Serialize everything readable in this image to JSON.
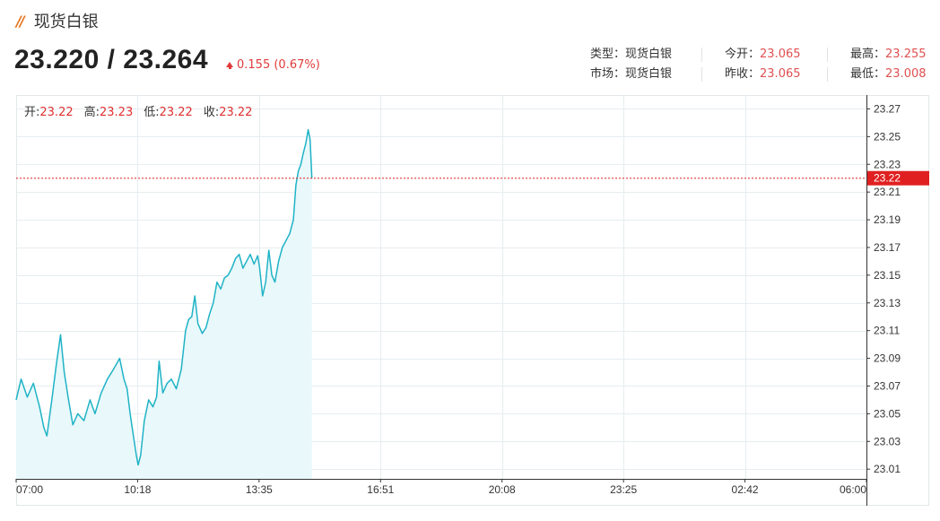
{
  "header": {
    "title": "现货白银",
    "title_mark": "//",
    "price": "23.220 / 23.264",
    "change": "0.155 (0.67%)"
  },
  "info": {
    "type_label": "类型：",
    "type_value": "现货白银",
    "market_label": "市场：",
    "market_value": "现货白银",
    "open_label": "今开：",
    "open_value": "23.065",
    "prev_close_label": "昨收：",
    "prev_close_value": "23.065",
    "high_label": "最高：",
    "high_value": "23.255",
    "low_label": "最低：",
    "low_value": "23.008"
  },
  "ohlc": {
    "open_label": "开:",
    "open_value": "23.22",
    "high_label": "高:",
    "high_value": "23.23",
    "low_label": "低:",
    "low_value": "23.22",
    "close_label": "收:",
    "close_value": "23.22"
  },
  "colors": {
    "line": "#1fb3c6",
    "area": "#e9f8fa",
    "current_price": "#e02020",
    "grid": "#e6edf0"
  },
  "chart_data": {
    "type": "area",
    "title": "",
    "xlabel": "",
    "ylabel": "",
    "x_ticks": [
      "07:00",
      "10:18",
      "13:35",
      "16:51",
      "20:08",
      "23:25",
      "02:42",
      "06:00"
    ],
    "y_ticks": [
      "23.27",
      "23.25",
      "23.23",
      "23.21",
      "23.19",
      "23.17",
      "23.15",
      "23.13",
      "23.11",
      "23.09",
      "23.07",
      "23.05",
      "23.03",
      "23.01"
    ],
    "ylim": [
      23.003,
      23.28
    ],
    "current_price": 23.22,
    "current_price_label": "23.22",
    "grid": true,
    "series": [
      {
        "values": [
          [
            "07:00",
            23.06
          ],
          [
            "07:08",
            23.075
          ],
          [
            "07:18",
            23.062
          ],
          [
            "07:28",
            23.072
          ],
          [
            "07:38",
            23.055
          ],
          [
            "07:45",
            23.04
          ],
          [
            "07:50",
            23.034
          ],
          [
            "07:58",
            23.06
          ],
          [
            "08:05",
            23.085
          ],
          [
            "08:12",
            23.107
          ],
          [
            "08:18",
            23.08
          ],
          [
            "08:25",
            23.06
          ],
          [
            "08:32",
            23.042
          ],
          [
            "08:40",
            23.05
          ],
          [
            "08:50",
            23.045
          ],
          [
            "09:00",
            23.06
          ],
          [
            "09:08",
            23.05
          ],
          [
            "09:18",
            23.065
          ],
          [
            "09:28",
            23.075
          ],
          [
            "09:38",
            23.082
          ],
          [
            "09:48",
            23.09
          ],
          [
            "09:55",
            23.075
          ],
          [
            "10:00",
            23.068
          ],
          [
            "10:05",
            23.05
          ],
          [
            "10:10",
            23.035
          ],
          [
            "10:15",
            23.02
          ],
          [
            "10:18",
            23.013
          ],
          [
            "10:22",
            23.02
          ],
          [
            "10:28",
            23.045
          ],
          [
            "10:35",
            23.06
          ],
          [
            "10:42",
            23.055
          ],
          [
            "10:48",
            23.062
          ],
          [
            "10:52",
            23.088
          ],
          [
            "10:58",
            23.065
          ],
          [
            "11:05",
            23.072
          ],
          [
            "11:12",
            23.075
          ],
          [
            "11:20",
            23.068
          ],
          [
            "11:28",
            23.082
          ],
          [
            "11:35",
            23.11
          ],
          [
            "11:40",
            23.118
          ],
          [
            "11:45",
            23.12
          ],
          [
            "11:50",
            23.135
          ],
          [
            "11:55",
            23.115
          ],
          [
            "12:02",
            23.108
          ],
          [
            "12:08",
            23.112
          ],
          [
            "12:14",
            23.122
          ],
          [
            "12:20",
            23.13
          ],
          [
            "12:26",
            23.145
          ],
          [
            "12:32",
            23.14
          ],
          [
            "12:38",
            23.148
          ],
          [
            "12:44",
            23.15
          ],
          [
            "12:50",
            23.155
          ],
          [
            "12:56",
            23.162
          ],
          [
            "13:02",
            23.165
          ],
          [
            "13:08",
            23.155
          ],
          [
            "13:14",
            23.16
          ],
          [
            "13:20",
            23.165
          ],
          [
            "13:26",
            23.158
          ],
          [
            "13:32",
            23.164
          ],
          [
            "13:35",
            23.156
          ],
          [
            "13:40",
            23.135
          ],
          [
            "13:45",
            23.145
          ],
          [
            "13:50",
            23.168
          ],
          [
            "13:55",
            23.15
          ],
          [
            "14:00",
            23.145
          ],
          [
            "14:06",
            23.16
          ],
          [
            "14:12",
            23.17
          ],
          [
            "14:18",
            23.175
          ],
          [
            "14:24",
            23.18
          ],
          [
            "14:30",
            23.19
          ],
          [
            "14:34",
            23.215
          ],
          [
            "14:38",
            23.225
          ],
          [
            "14:42",
            23.23
          ],
          [
            "14:46",
            23.238
          ],
          [
            "14:50",
            23.245
          ],
          [
            "14:54",
            23.255
          ],
          [
            "14:57",
            23.248
          ],
          [
            "15:00",
            23.22
          ]
        ]
      }
    ]
  }
}
